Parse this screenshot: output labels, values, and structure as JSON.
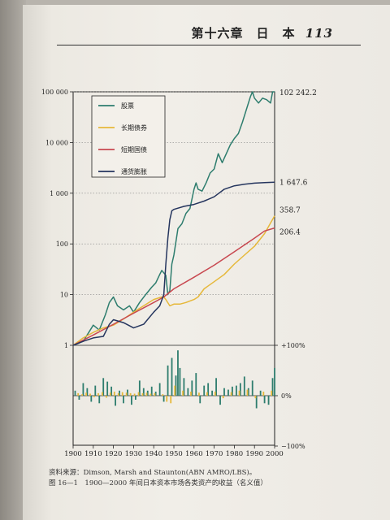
{
  "page": {
    "header": "第十六章　日　本",
    "page_number": "113",
    "source_note": "资料来源：Dimson, Marsh and Staunton(ABN AMRO/LBS)。",
    "figure_caption": "图 16—1　1900—2000 年间日本资本市场各类资产的收益（名义值）"
  },
  "chart_data": [
    {
      "type": "line",
      "panel": "cumulative-value",
      "scale": "log",
      "ylim": [
        1,
        100000
      ],
      "y_ticks": [
        "1",
        "10",
        "100",
        "1 000",
        "10 000",
        "100 000"
      ],
      "x_ticks": [
        "1900",
        "1910",
        "1920",
        "1930",
        "1940",
        "1950",
        "1960",
        "1970",
        "1980",
        "1990",
        "2000"
      ],
      "grid": "dotted horizontal",
      "legend_position": "top-left",
      "series": [
        {
          "name": "股票",
          "color": "#2e7d6e",
          "end_label": "102 242.2",
          "points": [
            [
              1900,
              1
            ],
            [
              1905,
              1.2
            ],
            [
              1910,
              2.5
            ],
            [
              1913,
              2
            ],
            [
              1916,
              4
            ],
            [
              1918,
              7
            ],
            [
              1920,
              9
            ],
            [
              1922,
              6
            ],
            [
              1925,
              5
            ],
            [
              1928,
              6
            ],
            [
              1930,
              4.5
            ],
            [
              1933,
              7
            ],
            [
              1936,
              10
            ],
            [
              1939,
              14
            ],
            [
              1941,
              17
            ],
            [
              1943,
              25
            ],
            [
              1944,
              30
            ],
            [
              1946,
              24
            ],
            [
              1947,
              10
            ],
            [
              1948,
              12
            ],
            [
              1949,
              40
            ],
            [
              1950,
              60
            ],
            [
              1952,
              200
            ],
            [
              1954,
              250
            ],
            [
              1956,
              400
            ],
            [
              1958,
              500
            ],
            [
              1960,
              1200
            ],
            [
              1961,
              1600
            ],
            [
              1962,
              1200
            ],
            [
              1964,
              1100
            ],
            [
              1966,
              1600
            ],
            [
              1968,
              2500
            ],
            [
              1970,
              3000
            ],
            [
              1972,
              6000
            ],
            [
              1974,
              4000
            ],
            [
              1976,
              6000
            ],
            [
              1978,
              9000
            ],
            [
              1980,
              12000
            ],
            [
              1982,
              15000
            ],
            [
              1984,
              25000
            ],
            [
              1986,
              45000
            ],
            [
              1988,
              80000
            ],
            [
              1989,
              110000
            ],
            [
              1990,
              75000
            ],
            [
              1992,
              60000
            ],
            [
              1994,
              75000
            ],
            [
              1996,
              70000
            ],
            [
              1998,
              60000
            ],
            [
              1999,
              100000
            ],
            [
              2000,
              102242.2
            ]
          ]
        },
        {
          "name": "长期债券",
          "color": "#e6b83a",
          "end_label": "358.7",
          "points": [
            [
              1900,
              1
            ],
            [
              1905,
              1.4
            ],
            [
              1910,
              1.8
            ],
            [
              1915,
              2.2
            ],
            [
              1920,
              2.5
            ],
            [
              1925,
              3.3
            ],
            [
              1930,
              4.5
            ],
            [
              1935,
              6
            ],
            [
              1940,
              8
            ],
            [
              1944,
              9
            ],
            [
              1945,
              9
            ],
            [
              1946,
              8
            ],
            [
              1948,
              6
            ],
            [
              1950,
              6.5
            ],
            [
              1953,
              6.5
            ],
            [
              1956,
              7
            ],
            [
              1958,
              7.5
            ],
            [
              1960,
              8
            ],
            [
              1962,
              9
            ],
            [
              1965,
              13
            ],
            [
              1970,
              18
            ],
            [
              1975,
              25
            ],
            [
              1980,
              40
            ],
            [
              1985,
              60
            ],
            [
              1990,
              90
            ],
            [
              1995,
              160
            ],
            [
              2000,
              358.7
            ]
          ]
        },
        {
          "name": "短期国债",
          "color": "#c84850",
          "end_label": "206.4",
          "points": [
            [
              1900,
              1
            ],
            [
              1910,
              1.6
            ],
            [
              1920,
              2.6
            ],
            [
              1930,
              4.3
            ],
            [
              1940,
              7
            ],
            [
              1945,
              9
            ],
            [
              1950,
              13
            ],
            [
              1960,
              22
            ],
            [
              1970,
              38
            ],
            [
              1980,
              70
            ],
            [
              1990,
              130
            ],
            [
              1995,
              180
            ],
            [
              2000,
              206.4
            ]
          ]
        },
        {
          "name": "通货膨胀",
          "color": "#25355e",
          "end_label": "1 647.6",
          "points": [
            [
              1900,
              1
            ],
            [
              1905,
              1.2
            ],
            [
              1910,
              1.4
            ],
            [
              1915,
              1.5
            ],
            [
              1918,
              2.6
            ],
            [
              1920,
              3.2
            ],
            [
              1925,
              2.8
            ],
            [
              1930,
              2.2
            ],
            [
              1935,
              2.6
            ],
            [
              1940,
              4.5
            ],
            [
              1943,
              6
            ],
            [
              1945,
              10
            ],
            [
              1946,
              40
            ],
            [
              1947,
              130
            ],
            [
              1948,
              300
            ],
            [
              1949,
              450
            ],
            [
              1950,
              480
            ],
            [
              1955,
              550
            ],
            [
              1960,
              600
            ],
            [
              1965,
              700
            ],
            [
              1970,
              850
            ],
            [
              1975,
              1200
            ],
            [
              1980,
              1400
            ],
            [
              1985,
              1500
            ],
            [
              1990,
              1580
            ],
            [
              1995,
              1620
            ],
            [
              2000,
              1647.6
            ]
          ]
        }
      ]
    },
    {
      "type": "bar",
      "panel": "annual-returns",
      "ylim": [
        -100,
        100
      ],
      "y_ticks": [
        "+100%",
        "0%",
        "−100%"
      ],
      "x_ticks": [
        "1900",
        "1910",
        "1920",
        "1930",
        "1940",
        "1950",
        "1960",
        "1970",
        "1980",
        "1990",
        "2000"
      ],
      "series": [
        {
          "name": "股票",
          "color": "#2e7d6e",
          "x": [
            1901,
            1903,
            1905,
            1907,
            1909,
            1911,
            1913,
            1915,
            1917,
            1919,
            1921,
            1923,
            1925,
            1927,
            1929,
            1931,
            1933,
            1935,
            1937,
            1939,
            1941,
            1943,
            1945,
            1947,
            1949,
            1951,
            1952,
            1953,
            1955,
            1957,
            1959,
            1961,
            1963,
            1965,
            1967,
            1969,
            1971,
            1973,
            1975,
            1977,
            1979,
            1981,
            1983,
            1985,
            1987,
            1989,
            1991,
            1993,
            1995,
            1997,
            1999,
            2000
          ],
          "values": [
            10,
            -8,
            25,
            15,
            -12,
            20,
            -15,
            35,
            28,
            18,
            -20,
            10,
            -15,
            12,
            -18,
            -8,
            30,
            15,
            10,
            18,
            8,
            25,
            -12,
            60,
            75,
            40,
            90,
            55,
            35,
            15,
            30,
            45,
            -15,
            20,
            25,
            10,
            35,
            -18,
            15,
            12,
            18,
            20,
            25,
            38,
            15,
            30,
            -25,
            10,
            -15,
            -18,
            35,
            55
          ]
        },
        {
          "name": "长期债券",
          "color": "#e6b83a",
          "x": [
            1902,
            1904,
            1906,
            1908,
            1910,
            1912,
            1914,
            1916,
            1918,
            1920,
            1922,
            1924,
            1926,
            1928,
            1930,
            1932,
            1934,
            1936,
            1938,
            1940,
            1944,
            1946,
            1948,
            1950,
            1954,
            1958,
            1962,
            1966,
            1970,
            1974,
            1978,
            1982,
            1986,
            1990,
            1994,
            1998
          ],
          "values": [
            5,
            3,
            6,
            4,
            -3,
            5,
            7,
            -4,
            6,
            8,
            5,
            7,
            6,
            5,
            4,
            7,
            5,
            6,
            4,
            5,
            3,
            -12,
            -15,
            20,
            10,
            8,
            6,
            7,
            8,
            -5,
            7,
            10,
            12,
            -5,
            8,
            10
          ]
        }
      ]
    }
  ]
}
